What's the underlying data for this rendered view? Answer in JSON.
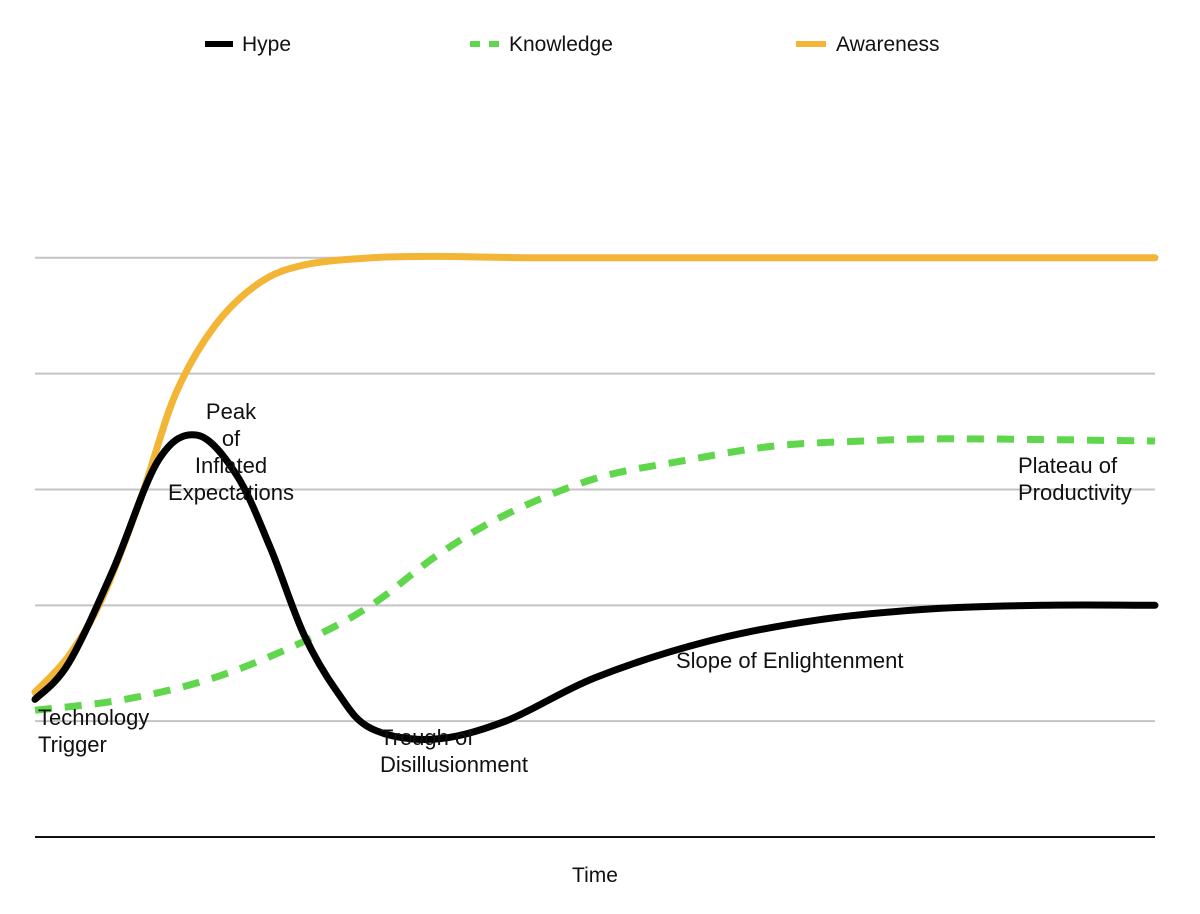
{
  "colors": {
    "hype": "#000000",
    "knowledge": "#5fd64b",
    "awareness": "#f3b535",
    "grid": "#c4c4c4",
    "axis": "#111111",
    "background": "#ffffff"
  },
  "chart_data": {
    "type": "line",
    "title": "",
    "xlabel": "Time",
    "ylabel": "",
    "xlim": [
      0,
      100
    ],
    "ylim": [
      0,
      100
    ],
    "grid": true,
    "gridlines_y": [
      16,
      32,
      48,
      64,
      80
    ],
    "legend_position": "top",
    "legend": [
      {
        "name": "Hype",
        "style": "solid",
        "color": "#000000"
      },
      {
        "name": "Knowledge",
        "style": "dashed",
        "color": "#5fd64b"
      },
      {
        "name": "Awareness",
        "style": "solid",
        "color": "#f3b535"
      }
    ],
    "series": [
      {
        "name": "Hype",
        "style": "solid",
        "color": "#000000",
        "points": [
          [
            0,
            19
          ],
          [
            3,
            24
          ],
          [
            7,
            37
          ],
          [
            11,
            52
          ],
          [
            14.5,
            55.5
          ],
          [
            18,
            50
          ],
          [
            21,
            40
          ],
          [
            24,
            28
          ],
          [
            27,
            20
          ],
          [
            30,
            15
          ],
          [
            35.5,
            13.5
          ],
          [
            42,
            16
          ],
          [
            50,
            22
          ],
          [
            60,
            27
          ],
          [
            70,
            30
          ],
          [
            80,
            31.5
          ],
          [
            90,
            32
          ],
          [
            100,
            32
          ]
        ]
      },
      {
        "name": "Knowledge",
        "style": "dashed",
        "color": "#5fd64b",
        "points": [
          [
            0,
            17.5
          ],
          [
            8,
            19
          ],
          [
            16,
            22
          ],
          [
            24,
            27
          ],
          [
            30,
            32
          ],
          [
            36,
            39
          ],
          [
            42,
            44.5
          ],
          [
            50,
            49.5
          ],
          [
            58,
            52
          ],
          [
            66,
            54
          ],
          [
            74,
            54.7
          ],
          [
            82,
            55
          ],
          [
            100,
            54.7
          ]
        ]
      },
      {
        "name": "Awareness",
        "style": "solid",
        "color": "#f3b535",
        "points": [
          [
            0,
            20
          ],
          [
            3,
            25
          ],
          [
            6,
            33
          ],
          [
            9.5,
            47
          ],
          [
            12.5,
            61
          ],
          [
            16,
            70.5
          ],
          [
            20,
            76.5
          ],
          [
            24,
            79
          ],
          [
            30,
            80
          ],
          [
            36,
            80.2
          ],
          [
            45,
            80
          ],
          [
            60,
            80
          ],
          [
            80,
            80
          ],
          [
            100,
            80
          ]
        ]
      }
    ],
    "annotations": [
      {
        "text": "Peak of Inflated Expectations",
        "lines": [
          "Peak",
          "of",
          "Inflated",
          "Expectations"
        ]
      },
      {
        "text": "Plateau of Productivity",
        "lines": [
          "Plateau of",
          "Productivity"
        ]
      },
      {
        "text": "Slope of Enlightenment",
        "lines": [
          "Slope of Enlightenment"
        ]
      },
      {
        "text": "Technology Trigger",
        "lines": [
          "Technology",
          "Trigger"
        ]
      },
      {
        "text": "Trough of Disillusionment",
        "lines": [
          "Trough of",
          "Disillusionment"
        ]
      }
    ]
  }
}
